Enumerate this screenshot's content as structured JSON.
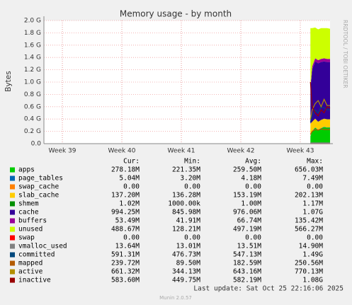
{
  "chart_data": {
    "type": "area",
    "title": "Memory usage - by month",
    "y_label": "Bytes",
    "watermark": "RRDTOOL / TOBI OETIKER",
    "last_update": "Last update: Sat Oct 25 22:16:06 2025",
    "version": "Munin 2.0.57",
    "xlim": [
      38.69,
      43.5
    ],
    "xticks": [
      {
        "value": 39,
        "label": "Week 39"
      },
      {
        "value": 40,
        "label": "Week 40"
      },
      {
        "value": 41,
        "label": "Week 41"
      },
      {
        "value": 42,
        "label": "Week 42"
      },
      {
        "value": 43,
        "label": "Week 43"
      }
    ],
    "ylim": [
      0,
      2.0
    ],
    "yticks": [
      {
        "value": 0,
        "label": "0.0"
      },
      {
        "value": 0.2,
        "label": "0.2 G"
      },
      {
        "value": 0.4,
        "label": "0.4 G"
      },
      {
        "value": 0.6,
        "label": "0.6 G"
      },
      {
        "value": 0.8,
        "label": "0.8 G"
      },
      {
        "value": 1.0,
        "label": "1.0 G"
      },
      {
        "value": 1.2,
        "label": "1.2 G"
      },
      {
        "value": 1.4,
        "label": "1.4 G"
      },
      {
        "value": 1.6,
        "label": "1.6 G"
      },
      {
        "value": 1.8,
        "label": "1.8 G"
      },
      {
        "value": 2.0,
        "label": "2.0 G"
      }
    ],
    "grid": true,
    "x": [
      43.17,
      43.2,
      43.25,
      43.3,
      43.35,
      43.4,
      43.45,
      43.5
    ],
    "stats_header": [
      "Cur:",
      "Min:",
      "Avg:",
      "Max:"
    ],
    "series": [
      {
        "name": "apps",
        "color": "#00cc00",
        "kind": "area",
        "values": [
          0.12,
          0.2,
          0.26,
          0.22,
          0.25,
          0.27,
          0.26,
          0.26
        ],
        "stats": [
          "278.18M",
          "221.35M",
          "259.50M",
          "656.03M"
        ]
      },
      {
        "name": "page_tables",
        "color": "#0066b3",
        "kind": "area",
        "values": [
          0.005,
          0.005,
          0.005,
          0.005,
          0.005,
          0.005,
          0.005,
          0.005
        ],
        "stats": [
          "5.04M",
          "3.20M",
          "4.18M",
          "7.49M"
        ]
      },
      {
        "name": "swap_cache",
        "color": "#ff8000",
        "kind": "area",
        "values": [
          0,
          0,
          0,
          0,
          0,
          0,
          0,
          0
        ],
        "stats": [
          "0.00",
          "0.00",
          "0.00",
          "0.00"
        ]
      },
      {
        "name": "slab_cache",
        "color": "#ffcc00",
        "kind": "area",
        "values": [
          0.2,
          0.15,
          0.14,
          0.13,
          0.13,
          0.13,
          0.13,
          0.13
        ],
        "stats": [
          "137.20M",
          "136.28M",
          "153.19M",
          "202.13M"
        ]
      },
      {
        "name": "shmem",
        "color": "#008f00",
        "kind": "area",
        "values": [
          0.001,
          0.001,
          0.001,
          0.001,
          0.001,
          0.001,
          0.001,
          0.001
        ],
        "stats": [
          "1.02M",
          "1000.00k",
          "1.00M",
          "1.17M"
        ]
      },
      {
        "name": "cache",
        "color": "#330099",
        "kind": "area",
        "values": [
          0.55,
          0.85,
          0.93,
          0.95,
          0.94,
          0.93,
          0.93,
          0.93
        ],
        "stats": [
          "994.25M",
          "845.98M",
          "976.06M",
          "1.07G"
        ]
      },
      {
        "name": "buffers",
        "color": "#990099",
        "kind": "area",
        "values": [
          0.05,
          0.05,
          0.05,
          0.05,
          0.05,
          0.05,
          0.05,
          0.05
        ],
        "stats": [
          "53.49M",
          "41.91M",
          "66.74M",
          "135.42M"
        ]
      },
      {
        "name": "unused",
        "color": "#ccff00",
        "kind": "area",
        "values": [
          0.95,
          0.62,
          0.5,
          0.5,
          0.5,
          0.49,
          0.5,
          0.49
        ],
        "stats": [
          "488.67M",
          "128.21M",
          "497.19M",
          "566.27M"
        ]
      },
      {
        "name": "swap",
        "color": "#ff0000",
        "kind": "line",
        "values": [
          0,
          0,
          0,
          0,
          0,
          0,
          0,
          0
        ],
        "stats": [
          "0.00",
          "0.00",
          "0.00",
          "0.00"
        ]
      },
      {
        "name": "vmalloc_used",
        "color": "#808080",
        "kind": "line",
        "values": [
          0.013,
          0.013,
          0.013,
          0.013,
          0.013,
          0.013,
          0.013,
          0.013
        ],
        "stats": [
          "13.64M",
          "13.01M",
          "13.51M",
          "14.90M"
        ]
      },
      {
        "name": "committed",
        "color": "#00487d",
        "kind": "line",
        "values": [
          0.35,
          0.45,
          0.55,
          0.5,
          0.6,
          0.58,
          0.55,
          0.55
        ],
        "stats": [
          "591.31M",
          "476.73M",
          "547.13M",
          "1.49G"
        ]
      },
      {
        "name": "mapped",
        "color": "#b35a00",
        "kind": "line",
        "values": [
          0.15,
          0.2,
          0.23,
          0.22,
          0.24,
          0.23,
          0.23,
          0.23
        ],
        "stats": [
          "239.72M",
          "89.50M",
          "182.59M",
          "250.56M"
        ]
      },
      {
        "name": "active",
        "color": "#b38f00",
        "kind": "line",
        "values": [
          0.4,
          0.55,
          0.65,
          0.7,
          0.6,
          0.72,
          0.62,
          0.62
        ],
        "stats": [
          "661.32M",
          "344.13M",
          "643.16M",
          "770.13M"
        ]
      },
      {
        "name": "inactive",
        "color": "#990000",
        "kind": "line",
        "values": [
          1.0,
          0.6,
          0.5,
          0.45,
          0.55,
          0.5,
          0.6,
          0.58
        ],
        "stats": [
          "583.60M",
          "449.75M",
          "582.19M",
          "1.08G"
        ]
      }
    ]
  }
}
